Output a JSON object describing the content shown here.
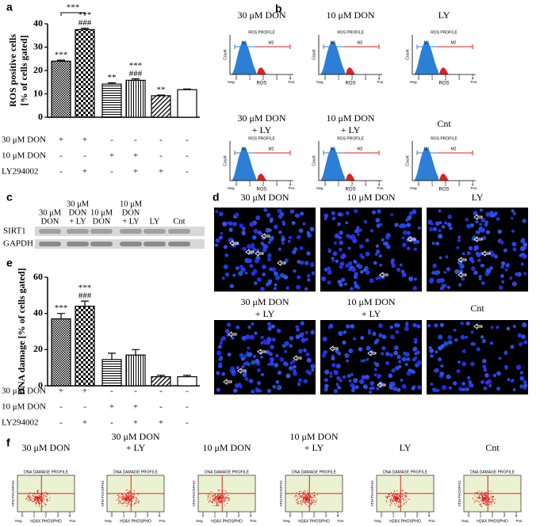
{
  "panel_letters": [
    "a",
    "b",
    "c",
    "d",
    "e",
    "f"
  ],
  "chart_data": [
    {
      "type": "bar",
      "ylabel": [
        "ROS positive cells",
        "[% of cells gated]"
      ],
      "values": [
        24,
        37.5,
        14.2,
        15.8,
        9.2,
        11.8
      ],
      "errors": [
        0.4,
        0.6,
        0.5,
        0.6,
        0.3,
        0.3
      ],
      "ylim": [
        0,
        40
      ],
      "yticks": [
        0,
        10,
        20,
        30,
        40
      ],
      "patterns": [
        "grid-fine",
        "checker",
        "horizontal",
        "vertical",
        "diagonal",
        "none"
      ],
      "annotations": [
        [
          "***"
        ],
        [
          "***",
          "###"
        ],
        [
          "**"
        ],
        [
          "***",
          "###"
        ],
        [
          "**"
        ],
        []
      ],
      "bracket_label": "***",
      "treatments": [
        {
          "label": "30 μM DON",
          "marks": [
            "+",
            "+",
            "-",
            "-",
            "-",
            "-"
          ]
        },
        {
          "label": "10 μM DON",
          "marks": [
            "-",
            "-",
            "+",
            "+",
            "-",
            "-"
          ]
        },
        {
          "label": "LY294002",
          "marks": [
            "-",
            "+",
            "-",
            "+",
            "+",
            "-"
          ]
        }
      ]
    },
    {
      "type": "bar",
      "ylabel": [
        "DNA damage [% of cells gated]"
      ],
      "values": [
        37,
        44,
        14.5,
        17,
        5,
        5
      ],
      "errors": [
        3,
        2.8,
        3.5,
        3,
        0.8,
        0.8
      ],
      "ylim": [
        0,
        60
      ],
      "yticks": [
        0,
        20,
        40,
        60
      ],
      "patterns": [
        "grid-fine",
        "checker",
        "horizontal",
        "vertical",
        "diagonal",
        "none"
      ],
      "annotations": [
        [
          "***"
        ],
        [
          "***",
          "###"
        ],
        [],
        [],
        [],
        []
      ],
      "treatments": [
        {
          "label": "30 μM DON",
          "marks": [
            "+",
            "+",
            "-",
            "-",
            "-",
            "-"
          ]
        },
        {
          "label": "10 μM DON",
          "marks": [
            "-",
            "-",
            "+",
            "+",
            "-",
            "-"
          ]
        },
        {
          "label": "LY294002",
          "marks": [
            "-",
            "+",
            "-",
            "+",
            "+",
            "-"
          ]
        }
      ]
    }
  ],
  "ros_profiles": {
    "plot_title": "ROS PROFILE",
    "ylabel": "Count",
    "xlabel": "ROS",
    "gates": [
      "M1",
      "M2"
    ],
    "axis_ends": [
      "Neg.",
      "Pos."
    ],
    "xticks": [
      0,
      1,
      2,
      3,
      4
    ],
    "samples": [
      [
        "30 μM DON"
      ],
      [
        "10 μM DON"
      ],
      [
        "LY"
      ],
      [
        "30 μM DON",
        "+ LY"
      ],
      [
        "10 μM DON",
        "+ LY"
      ],
      [
        "Cnt"
      ]
    ]
  },
  "western_blot": {
    "lanes": [
      [
        "30 μM",
        "DON"
      ],
      [
        "30 μM",
        "DON",
        "+ LY"
      ],
      [
        "10 μM",
        "DON"
      ],
      [
        "10 μM",
        "DON",
        "+ LY"
      ],
      [
        "LY"
      ],
      [
        "Cnt"
      ]
    ],
    "proteins": [
      "SIRT1",
      "GAPDH"
    ]
  },
  "microscopy": {
    "samples": [
      [
        "30 μM DON"
      ],
      [
        "10 μM DON"
      ],
      [
        "LY"
      ],
      [
        "30 μM DON",
        "+ LY"
      ],
      [
        "10 μM DON",
        "+ LY"
      ],
      [
        "Cnt"
      ]
    ]
  },
  "dna_damage_profiles": {
    "plot_title": "DNA DAMAGE PROFILE",
    "xlabel": "H2AX PHOSPHO",
    "ylabel": "ATM PHOSPHO",
    "axis_ends": [
      "Neg.",
      "Pos."
    ],
    "xticks": [
      0,
      1,
      2,
      3,
      4
    ],
    "samples": [
      [
        "30 μM DON"
      ],
      [
        "30 μM DON",
        "+ LY"
      ],
      [
        "10 μM DON"
      ],
      [
        "10 μM DON",
        "+ LY"
      ],
      [
        "LY"
      ],
      [
        "Cnt"
      ]
    ]
  }
}
